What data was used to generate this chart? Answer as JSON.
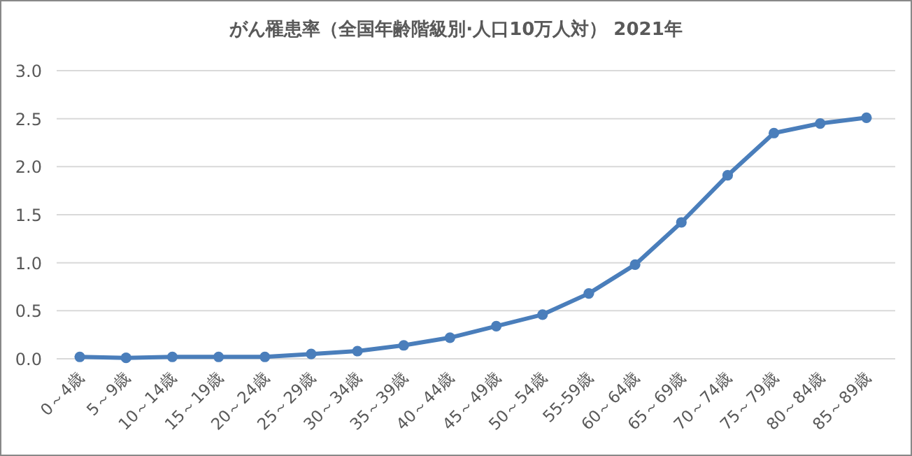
{
  "chart_data": {
    "type": "line",
    "title": "がん罹患率（全国年齢階級別·人口10万人対） 2021年",
    "categories": [
      "0～4歳",
      "5～9歳",
      "10～14歳",
      "15～19歳",
      "20～24歳",
      "25～29歳",
      "30～34歳",
      "35～39歳",
      "40～44歳",
      "45～49歳",
      "50～54歳",
      "55-59歳",
      "60～64歳",
      "65～69歳",
      "70～74歳",
      "75～79歳",
      "80～84歳",
      "85～89歳"
    ],
    "series": [
      {
        "color": "#4a7ebb",
        "values": [
          0.02,
          0.01,
          0.02,
          0.02,
          0.02,
          0.05,
          0.08,
          0.14,
          0.22,
          0.34,
          0.46,
          0.68,
          0.98,
          1.42,
          1.91,
          2.35,
          2.45,
          2.51
        ]
      }
    ],
    "ylim": [
      0,
      3
    ],
    "yticks": [
      {
        "value": 0,
        "label": "0.0"
      },
      {
        "value": 0.5,
        "label": "0.5"
      },
      {
        "value": 1,
        "label": "1.0"
      },
      {
        "value": 1.5,
        "label": "1.5"
      },
      {
        "value": 2,
        "label": "2.0"
      },
      {
        "value": 2.5,
        "label": "2.5"
      },
      {
        "value": 3,
        "label": "3.0"
      }
    ],
    "grid": "y",
    "marker": "circle",
    "line_style": "solid"
  }
}
